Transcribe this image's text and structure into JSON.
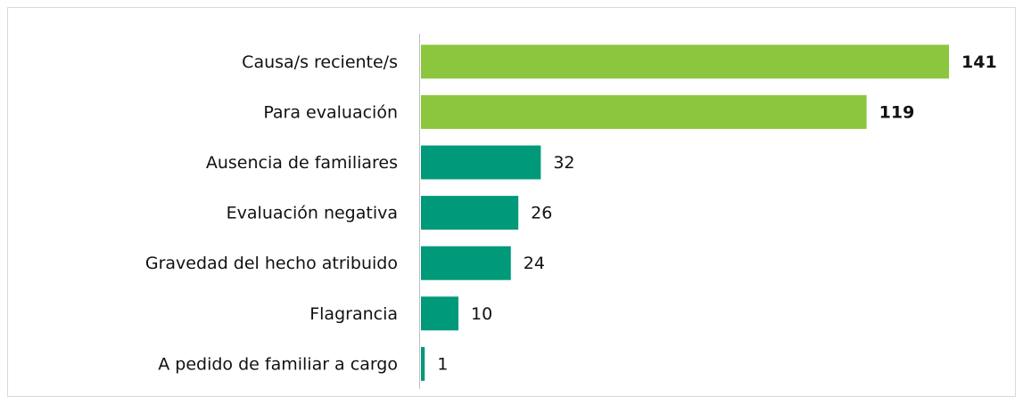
{
  "chart_data": {
    "type": "bar",
    "orientation": "horizontal",
    "categories": [
      "Causa/s reciente/s",
      "Para evaluación",
      "Ausencia de familiares",
      "Evaluación negativa",
      "Gravedad del hecho atribuido",
      "Flagrancia",
      "A pedido de familiar a cargo"
    ],
    "values": [
      141,
      119,
      32,
      26,
      24,
      10,
      1
    ],
    "colors": [
      "#8cc63e",
      "#8cc63e",
      "#00997a",
      "#00997a",
      "#00997a",
      "#00997a",
      "#00997a"
    ],
    "value_label_bold": [
      true,
      true,
      false,
      false,
      false,
      false,
      false
    ]
  }
}
